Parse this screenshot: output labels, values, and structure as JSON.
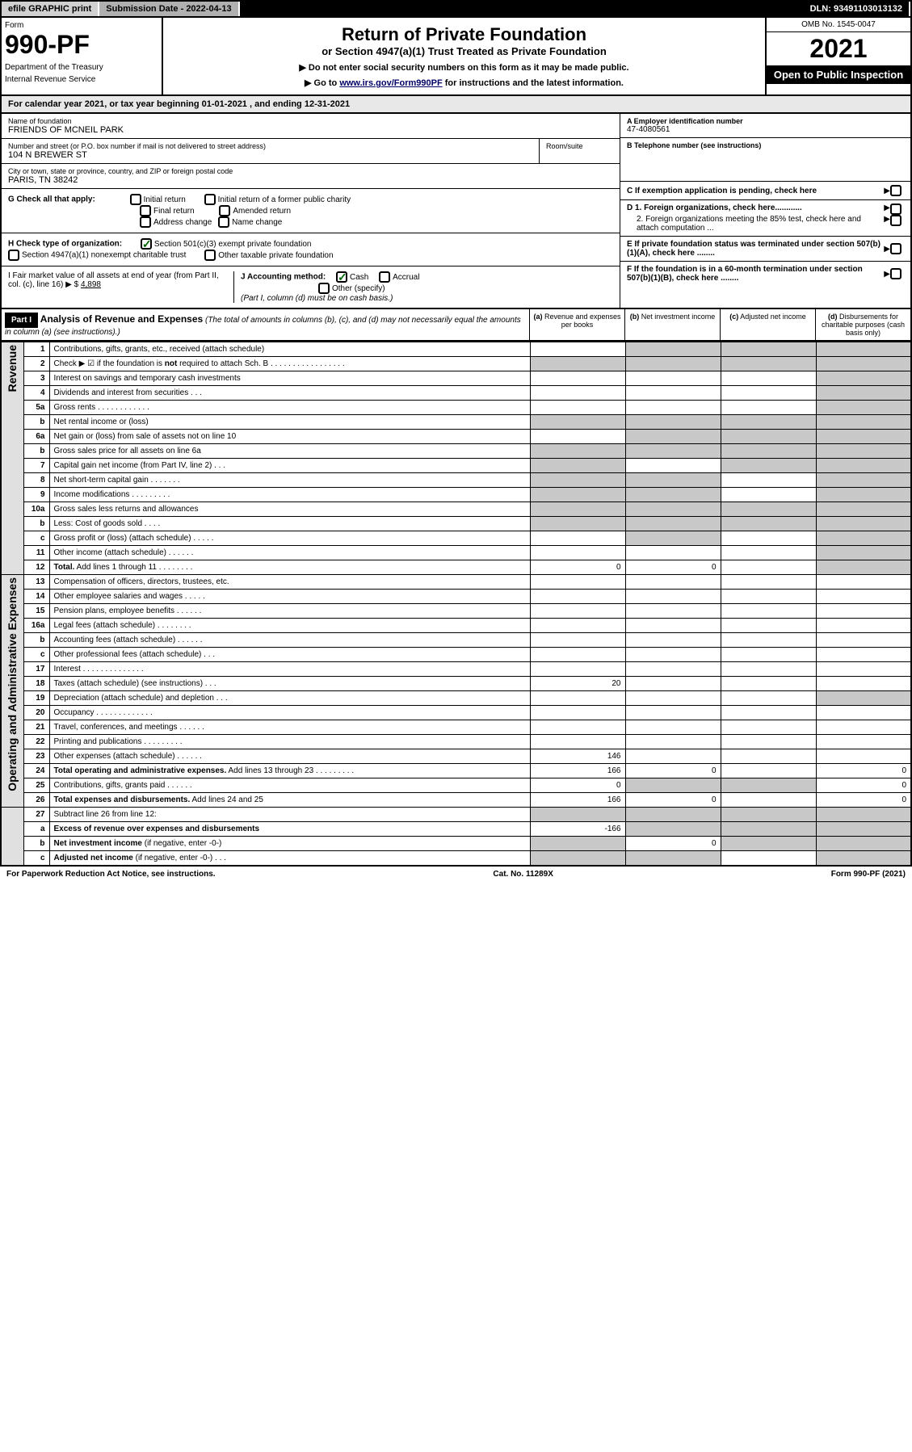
{
  "top_bar": {
    "efile": "efile GRAPHIC print",
    "sub_date": "Submission Date - 2022-04-13",
    "dln": "DLN: 93491103013132"
  },
  "header": {
    "form": "Form",
    "num": "990-PF",
    "dept1": "Department of the Treasury",
    "dept2": "Internal Revenue Service",
    "title": "Return of Private Foundation",
    "subtitle": "or Section 4947(a)(1) Trust Treated as Private Foundation",
    "note1": "▶ Do not enter social security numbers on this form as it may be made public.",
    "note2_pre": "▶ Go to ",
    "note2_link": "www.irs.gov/Form990PF",
    "note2_post": " for instructions and the latest information.",
    "omb": "OMB No. 1545-0047",
    "year": "2021",
    "open": "Open to Public Inspection"
  },
  "cal_yr": {
    "pre": "For calendar year 2021, or tax year beginning ",
    "begin": "01-01-2021",
    "mid": " , and ending ",
    "end": "12-31-2021"
  },
  "org": {
    "name_label": "Name of foundation",
    "name": "FRIENDS OF MCNEIL PARK",
    "addr_label": "Number and street (or P.O. box number if mail is not delivered to street address)",
    "addr": "104 N BREWER ST",
    "room_label": "Room/suite",
    "city_label": "City or town, state or province, country, and ZIP or foreign postal code",
    "city": "PARIS, TN  38242",
    "ein_label": "A Employer identification number",
    "ein": "47-4080561",
    "tel_label": "B Telephone number (see instructions)",
    "c_label": "C If exemption application is pending, check here",
    "d1": "D 1. Foreign organizations, check here............",
    "d2": "2. Foreign organizations meeting the 85% test, check here and attach computation ...",
    "e_label": "E  If private foundation status was terminated under section 507(b)(1)(A), check here ........",
    "f_label": "F  If the foundation is in a 60-month termination under section 507(b)(1)(B), check here ........"
  },
  "g": {
    "label": "G Check all that apply:",
    "opts": [
      "Initial return",
      "Initial return of a former public charity",
      "Final return",
      "Amended return",
      "Address change",
      "Name change"
    ]
  },
  "h": {
    "label": "H Check type of organization:",
    "opt1": "Section 501(c)(3) exempt private foundation",
    "opt2": "Section 4947(a)(1) nonexempt charitable trust",
    "opt3": "Other taxable private foundation"
  },
  "i": {
    "label": "I Fair market value of all assets at end of year (from Part II, col. (c), line 16)",
    "arrow": "▶ $",
    "val": "4,898"
  },
  "j": {
    "label": "J Accounting method:",
    "cash": "Cash",
    "accrual": "Accrual",
    "other": "Other (specify)",
    "note": "(Part I, column (d) must be on cash basis.)"
  },
  "part1": {
    "hdr": "Part I",
    "title": "Analysis of Revenue and Expenses",
    "note": " (The total of amounts in columns (b), (c), and (d) may not necessarily equal the amounts in column (a) (see instructions).)",
    "cols": [
      {
        "l": "(a)",
        "t": "Revenue and expenses per books"
      },
      {
        "l": "(b)",
        "t": "Net investment income"
      },
      {
        "l": "(c)",
        "t": "Adjusted net income"
      },
      {
        "l": "(d)",
        "t": "Disbursements for charitable purposes (cash basis only)"
      }
    ]
  },
  "sections": {
    "rev": "Revenue",
    "exp": "Operating and Administrative Expenses"
  },
  "rows": [
    {
      "sec": "rev",
      "n": "1",
      "d": "Contributions, gifts, grants, etc., received (attach schedule)",
      "shade": [
        1,
        2,
        3
      ]
    },
    {
      "sec": "rev",
      "n": "2",
      "d": "Check ▶ ☑ if the foundation is <b>not</b> required to attach Sch. B  .  .  .  .  .  .  .  .  .  .  .  .  .  .  .  .  .",
      "shade": [
        0,
        1,
        2,
        3
      ]
    },
    {
      "sec": "rev",
      "n": "3",
      "d": "Interest on savings and temporary cash investments",
      "shade": [
        3
      ]
    },
    {
      "sec": "rev",
      "n": "4",
      "d": "Dividends and interest from securities  .  .  .",
      "shade": [
        3
      ]
    },
    {
      "sec": "rev",
      "n": "5a",
      "d": "Gross rents  .  .  .  .  .  .  .  .  .  .  .  .",
      "shade": [
        3
      ]
    },
    {
      "sec": "rev",
      "n": "b",
      "d": "Net rental income or (loss)  ",
      "shade": [
        0,
        1,
        2,
        3
      ]
    },
    {
      "sec": "rev",
      "n": "6a",
      "d": "Net gain or (loss) from sale of assets not on line 10",
      "shade": [
        1,
        2,
        3
      ]
    },
    {
      "sec": "rev",
      "n": "b",
      "d": "Gross sales price for all assets on line 6a ",
      "shade": [
        0,
        1,
        2,
        3
      ]
    },
    {
      "sec": "rev",
      "n": "7",
      "d": "Capital gain net income (from Part IV, line 2)  .  .  .",
      "shade": [
        0,
        2,
        3
      ]
    },
    {
      "sec": "rev",
      "n": "8",
      "d": "Net short-term capital gain  .  .  .  .  .  .  .",
      "shade": [
        0,
        1,
        3
      ]
    },
    {
      "sec": "rev",
      "n": "9",
      "d": "Income modifications  .  .  .  .  .  .  .  .  .",
      "shade": [
        0,
        1,
        3
      ]
    },
    {
      "sec": "rev",
      "n": "10a",
      "d": "Gross sales less returns and allowances",
      "shade": [
        0,
        1,
        2,
        3
      ]
    },
    {
      "sec": "rev",
      "n": "b",
      "d": "Less: Cost of goods sold  .  .  .  .",
      "shade": [
        0,
        1,
        2,
        3
      ]
    },
    {
      "sec": "rev",
      "n": "c",
      "d": "Gross profit or (loss) (attach schedule)  .  .  .  .  .",
      "shade": [
        1,
        3
      ]
    },
    {
      "sec": "rev",
      "n": "11",
      "d": "Other income (attach schedule)  .  .  .  .  .  .",
      "shade": [
        3
      ]
    },
    {
      "sec": "rev",
      "n": "12",
      "d": "<b>Total.</b> Add lines 1 through 11  .  .  .  .  .  .  .  .",
      "a": "0",
      "b": "0",
      "shade": [
        3
      ]
    },
    {
      "sec": "exp",
      "n": "13",
      "d": "Compensation of officers, directors, trustees, etc.",
      "shade": []
    },
    {
      "sec": "exp",
      "n": "14",
      "d": "Other employee salaries and wages  .  .  .  .  .",
      "shade": []
    },
    {
      "sec": "exp",
      "n": "15",
      "d": "Pension plans, employee benefits  .  .  .  .  .  .",
      "shade": []
    },
    {
      "sec": "exp",
      "n": "16a",
      "d": "Legal fees (attach schedule)  .  .  .  .  .  .  .  .",
      "shade": []
    },
    {
      "sec": "exp",
      "n": "b",
      "d": "Accounting fees (attach schedule)  .  .  .  .  .  .",
      "shade": []
    },
    {
      "sec": "exp",
      "n": "c",
      "d": "Other professional fees (attach schedule)  .  .  .",
      "shade": []
    },
    {
      "sec": "exp",
      "n": "17",
      "d": "Interest  .  .  .  .  .  .  .  .  .  .  .  .  .  .",
      "shade": []
    },
    {
      "sec": "exp",
      "n": "18",
      "d": "Taxes (attach schedule) (see instructions)  .  .  .",
      "a": "20",
      "shade": []
    },
    {
      "sec": "exp",
      "n": "19",
      "d": "Depreciation (attach schedule) and depletion  .  .  .",
      "shade": [
        3
      ]
    },
    {
      "sec": "exp",
      "n": "20",
      "d": "Occupancy  .  .  .  .  .  .  .  .  .  .  .  .  .",
      "shade": []
    },
    {
      "sec": "exp",
      "n": "21",
      "d": "Travel, conferences, and meetings  .  .  .  .  .  .",
      "shade": []
    },
    {
      "sec": "exp",
      "n": "22",
      "d": "Printing and publications  .  .  .  .  .  .  .  .  .",
      "shade": []
    },
    {
      "sec": "exp",
      "n": "23",
      "d": "Other expenses (attach schedule)  .  .  .  .  .  .",
      "a": "146",
      "shade": []
    },
    {
      "sec": "exp",
      "n": "24",
      "d": "<b>Total operating and administrative expenses.</b> Add lines 13 through 23  .  .  .  .  .  .  .  .  .",
      "a": "166",
      "b": "0",
      "dd": "0",
      "shade": []
    },
    {
      "sec": "exp",
      "n": "25",
      "d": "Contributions, gifts, grants paid  .  .  .  .  .  .",
      "a": "0",
      "dd": "0",
      "shade": [
        1,
        2
      ]
    },
    {
      "sec": "exp",
      "n": "26",
      "d": "<b>Total expenses and disbursements.</b> Add lines 24 and 25",
      "a": "166",
      "b": "0",
      "dd": "0",
      "shade": []
    },
    {
      "sec": "",
      "n": "27",
      "d": "Subtract line 26 from line 12:",
      "shade": [
        0,
        1,
        2,
        3
      ]
    },
    {
      "sec": "",
      "n": "a",
      "d": "<b>Excess of revenue over expenses and disbursements</b>",
      "a": "-166",
      "shade": [
        1,
        2,
        3
      ]
    },
    {
      "sec": "",
      "n": "b",
      "d": "<b>Net investment income</b> (if negative, enter -0-)",
      "b": "0",
      "shade": [
        0,
        2,
        3
      ]
    },
    {
      "sec": "",
      "n": "c",
      "d": "<b>Adjusted net income</b> (if negative, enter -0-)  .  .  .",
      "shade": [
        0,
        1,
        3
      ]
    }
  ],
  "footer": {
    "left": "For Paperwork Reduction Act Notice, see instructions.",
    "mid": "Cat. No. 11289X",
    "right": "Form 990-PF (2021)"
  }
}
